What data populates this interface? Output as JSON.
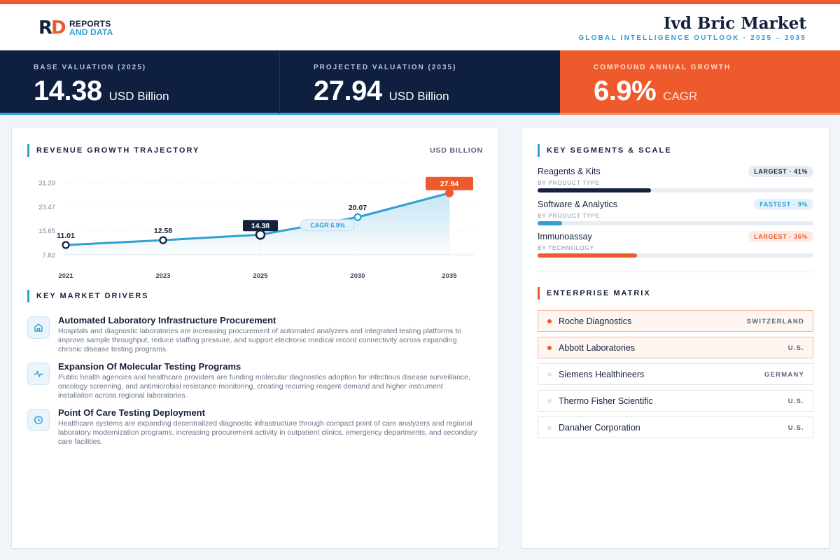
{
  "header": {
    "logo_line1": "REPORTS",
    "logo_line2": "AND DATA",
    "title": "Ivd Bric Market",
    "subtitle": "GLOBAL INTELLIGENCE OUTLOOK  ·  2025 – 2035"
  },
  "kpis": [
    {
      "label": "BASE VALUATION (2025)",
      "value": "14.38",
      "unit": "USD Billion"
    },
    {
      "label": "PROJECTED VALUATION (2035)",
      "value": "27.94",
      "unit": "USD Billion"
    },
    {
      "label": "COMPOUND ANNUAL GROWTH",
      "value": "6.9%",
      "unit": "CAGR"
    }
  ],
  "trajectory": {
    "title": "REVENUE GROWTH TRAJECTORY",
    "unit": "USD BILLION"
  },
  "chart_data": {
    "type": "line",
    "x": [
      "2021",
      "2023",
      "2025",
      "2030",
      "2035"
    ],
    "values": [
      11.01,
      12.58,
      14.38,
      20.07,
      27.94
    ],
    "data_labels": [
      "11.01",
      "12.58",
      "14.38",
      "20.07",
      "27.94"
    ],
    "yticks": [
      "31.29",
      "23.47",
      "15.65",
      "7.82"
    ],
    "ytick_values": [
      31.29,
      23.47,
      15.65,
      7.82
    ],
    "ylim": [
      7.82,
      31.29
    ],
    "annotation": "CAGR 6.9%",
    "grid": true,
    "colors": {
      "line": "#2f9fd4",
      "base": "#14213d",
      "projected": "#ee5a2b"
    }
  },
  "drivers": {
    "title": "KEY MARKET DRIVERS",
    "items": [
      {
        "icon": "building-icon",
        "title": "Automated Laboratory Infrastructure Procurement",
        "desc": "Hospitals and diagnostic laboratories are increasing procurement of automated analyzers and integrated testing platforms to improve sample throughput, reduce staffing pressure, and support electronic medical record connectivity across expanding chronic disease testing programs."
      },
      {
        "icon": "pulse-icon",
        "title": "Expansion Of Molecular Testing Programs",
        "desc": "Public health agencies and healthcare providers are funding molecular diagnostics adoption for infectious disease surveillance, oncology screening, and antimicrobial resistance monitoring, creating recurring reagent demand and higher instrument installation across regional laboratories."
      },
      {
        "icon": "clock-icon",
        "title": "Point Of Care Testing Deployment",
        "desc": "Healthcare systems are expanding decentralized diagnostic infrastructure through compact point of care analyzers and regional laboratory modernization programs, increasing procurement activity in outpatient clinics, emergency departments, and secondary care facilities."
      }
    ]
  },
  "segments": {
    "title": "KEY SEGMENTS & SCALE",
    "items": [
      {
        "name": "Reagents & Kits",
        "sub": "BY PRODUCT TYPE",
        "badge": "LARGEST · 41%",
        "share": 0.41,
        "color": "#14213d"
      },
      {
        "name": "Software & Analytics",
        "sub": "BY PRODUCT TYPE",
        "badge": "FASTEST · 9%",
        "share": 0.09,
        "color": "#2f9fd4"
      },
      {
        "name": "Immunoassay",
        "sub": "BY TECHNOLOGY",
        "badge": "LARGEST · 36%",
        "share": 0.36,
        "color": "#ee5a2b"
      }
    ]
  },
  "enterprise": {
    "title": "ENTERPRISE MATRIX",
    "items": [
      {
        "name": "Roche Diagnostics",
        "country": "SWITZERLAND",
        "highlight": true
      },
      {
        "name": "Abbott Laboratories",
        "country": "U.S.",
        "highlight": true
      },
      {
        "name": "Siemens Healthineers",
        "country": "GERMANY",
        "highlight": false
      },
      {
        "name": "Thermo Fisher Scientific",
        "country": "U.S.",
        "highlight": false
      },
      {
        "name": "Danaher Corporation",
        "country": "U.S.",
        "highlight": false
      }
    ]
  }
}
